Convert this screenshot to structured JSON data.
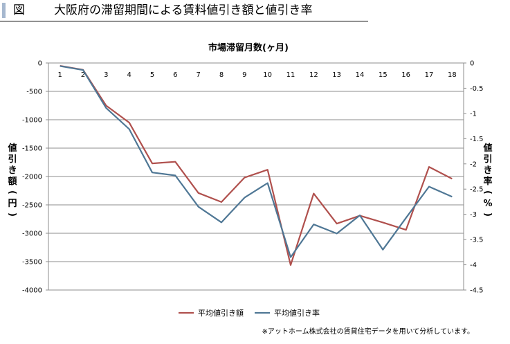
{
  "header": {
    "label": "図",
    "title": "大阪府の滞留期間による賃料値引き額と値引き率"
  },
  "chart_data": {
    "type": "line",
    "title": "",
    "xlabel": "市場滞留月数(ヶ月)",
    "ylabel": "値引き額(円)",
    "y2label": "値引き率(%)",
    "categories": [
      "1",
      "2",
      "3",
      "4",
      "5",
      "6",
      "7",
      "8",
      "9",
      "10",
      "11",
      "12",
      "13",
      "14",
      "15",
      "16",
      "17",
      "18"
    ],
    "ylim": [
      -4000,
      0
    ],
    "y_ticks": [
      "0",
      "-500",
      "-1000",
      "-1500",
      "-2000",
      "-2500",
      "-3000",
      "-3500",
      "-4000"
    ],
    "y2lim": [
      -4.5,
      0
    ],
    "y2_ticks": [
      "0",
      "-0.5",
      "-1",
      "-1.5",
      "-2",
      "-2.5",
      "-3",
      "-3.5",
      "-4",
      "-4.5"
    ],
    "grid": true,
    "legend": "bottom",
    "series": [
      {
        "name": "平均値引き額",
        "axis": "left",
        "color": "#b0504d",
        "values": [
          -50,
          -120,
          -750,
          -1050,
          -1770,
          -1740,
          -2290,
          -2450,
          -2020,
          -1880,
          -3560,
          -2300,
          -2830,
          -2690,
          -2810,
          -2940,
          -1830,
          -2040
        ]
      },
      {
        "name": "平均値引き率",
        "axis": "right",
        "color": "#4f7795",
        "values": [
          -0.06,
          -0.14,
          -0.89,
          -1.31,
          -2.17,
          -2.23,
          -2.85,
          -3.16,
          -2.67,
          -2.38,
          -3.85,
          -3.2,
          -3.38,
          -3.02,
          -3.7,
          -3.07,
          -2.45,
          -2.65
        ]
      }
    ]
  },
  "footnote": "※アットホーム株式会社の賃貸住宅データを用いて分析しています。"
}
